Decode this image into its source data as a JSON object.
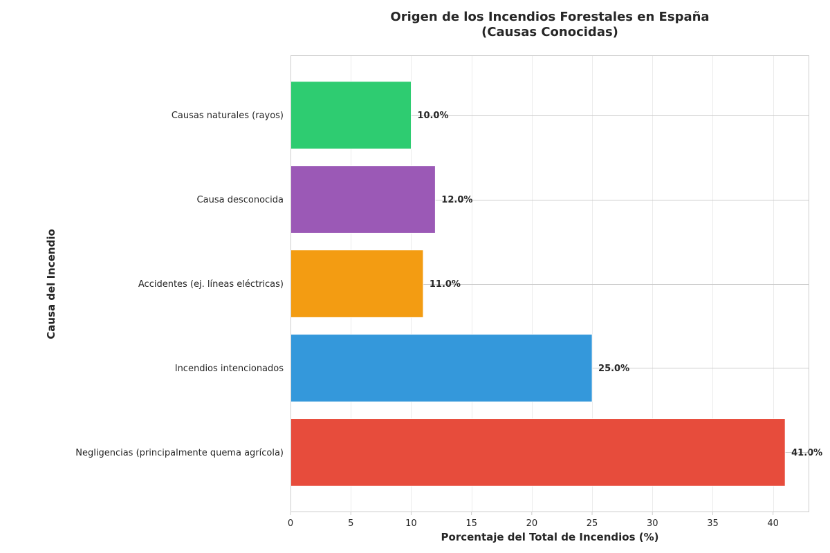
{
  "chart_data": {
    "type": "bar",
    "orientation": "horizontal",
    "title": "Origen de los Incendios Forestales en España",
    "subtitle": "(Causas Conocidas)",
    "xlabel": "Porcentaje del Total de Incendios (%)",
    "ylabel": "Causa del Incendio",
    "xlim": [
      0,
      43
    ],
    "xticks": [
      0,
      5,
      10,
      15,
      20,
      25,
      30,
      35,
      40
    ],
    "grid": true,
    "categories": [
      "Negligencias (principalmente quema agrícola)",
      "Incendios intencionados",
      "Accidentes (ej. líneas eléctricas)",
      "Causa desconocida",
      "Causas naturales (rayos)"
    ],
    "values": [
      41.0,
      25.0,
      11.0,
      12.0,
      10.0
    ],
    "value_labels": [
      "41.0%",
      "25.0%",
      "11.0%",
      "12.0%",
      "10.0%"
    ],
    "colors": [
      "#e74c3c",
      "#3498db",
      "#f39c12",
      "#9b59b6",
      "#2ecc71"
    ]
  }
}
